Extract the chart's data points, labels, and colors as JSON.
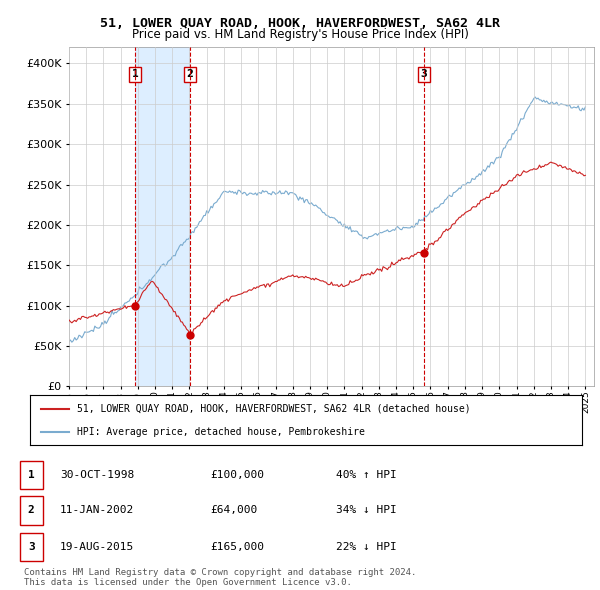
{
  "title": "51, LOWER QUAY ROAD, HOOK, HAVERFORDWEST, SA62 4LR",
  "subtitle": "Price paid vs. HM Land Registry's House Price Index (HPI)",
  "ylim": [
    0,
    420000
  ],
  "yticks": [
    0,
    50000,
    100000,
    150000,
    200000,
    250000,
    300000,
    350000,
    400000
  ],
  "sale_dates_num": [
    1998.83,
    2002.03,
    2015.63
  ],
  "sale_prices": [
    100000,
    64000,
    165000
  ],
  "sale_labels": [
    "1",
    "2",
    "3"
  ],
  "vline_color": "#cc0000",
  "sale_marker_color": "#cc0000",
  "legend_entries": [
    "51, LOWER QUAY ROAD, HOOK, HAVERFORDWEST, SA62 4LR (detached house)",
    "HPI: Average price, detached house, Pembrokeshire"
  ],
  "table_rows": [
    [
      "1",
      "30-OCT-1998",
      "£100,000",
      "40% ↑ HPI"
    ],
    [
      "2",
      "11-JAN-2002",
      "£64,000",
      "34% ↓ HPI"
    ],
    [
      "3",
      "19-AUG-2015",
      "£165,000",
      "22% ↓ HPI"
    ]
  ],
  "footnote": "Contains HM Land Registry data © Crown copyright and database right 2024.\nThis data is licensed under the Open Government Licence v3.0.",
  "red_line_color": "#cc2222",
  "blue_line_color": "#7aabcf",
  "shade_color": "#ddeeff",
  "background_color": "#ffffff",
  "grid_color": "#cccccc"
}
